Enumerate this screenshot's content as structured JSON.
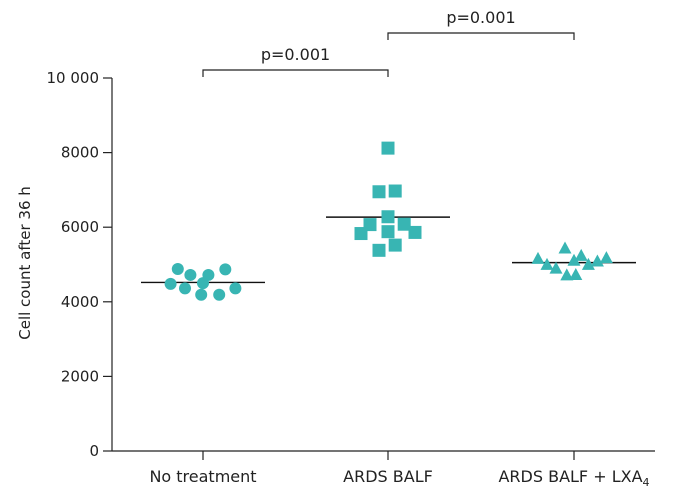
{
  "chart_data": {
    "type": "scatter",
    "ylabel": "Cell count after 36 h",
    "ylim": [
      0,
      10000
    ],
    "yticks": [
      0,
      2000,
      4000,
      6000,
      8000,
      10000
    ],
    "ytick_labels": [
      "0",
      "2000",
      "4000",
      "6000",
      "8000",
      "10 000"
    ],
    "categories": [
      "No treatment",
      "ARDS BALF",
      "ARDS BALF + LXA"
    ],
    "category_subscripts": [
      "",
      "",
      "4"
    ],
    "marker_color": "#38b5b3",
    "series": [
      {
        "marker": "circle",
        "mean": 4520,
        "points": [
          {
            "dx": -0.7,
            "y": 4880
          },
          {
            "dx": -0.35,
            "y": 4720
          },
          {
            "dx": 0.15,
            "y": 4720
          },
          {
            "dx": 0.62,
            "y": 4870
          },
          {
            "dx": -0.9,
            "y": 4480
          },
          {
            "dx": -0.5,
            "y": 4360
          },
          {
            "dx": 0.0,
            "y": 4500
          },
          {
            "dx": -0.05,
            "y": 4190
          },
          {
            "dx": 0.45,
            "y": 4190
          },
          {
            "dx": 0.9,
            "y": 4360
          }
        ]
      },
      {
        "marker": "square",
        "mean": 6270,
        "points": [
          {
            "dx": 0.0,
            "y": 8120
          },
          {
            "dx": -0.25,
            "y": 6950
          },
          {
            "dx": 0.2,
            "y": 6970
          },
          {
            "dx": 0.0,
            "y": 6280
          },
          {
            "dx": -0.5,
            "y": 6070
          },
          {
            "dx": 0.45,
            "y": 6080
          },
          {
            "dx": -0.75,
            "y": 5830
          },
          {
            "dx": 0.0,
            "y": 5880
          },
          {
            "dx": 0.75,
            "y": 5860
          },
          {
            "dx": -0.25,
            "y": 5380
          },
          {
            "dx": 0.2,
            "y": 5520
          }
        ]
      },
      {
        "marker": "triangle",
        "mean": 5050,
        "points": [
          {
            "dx": -1.0,
            "y": 5150
          },
          {
            "dx": -0.75,
            "y": 4990
          },
          {
            "dx": -0.5,
            "y": 4890
          },
          {
            "dx": -0.25,
            "y": 5430
          },
          {
            "dx": -0.2,
            "y": 4710
          },
          {
            "dx": 0.0,
            "y": 5100
          },
          {
            "dx": 0.05,
            "y": 4720
          },
          {
            "dx": 0.2,
            "y": 5230
          },
          {
            "dx": 0.4,
            "y": 4990
          },
          {
            "dx": 0.65,
            "y": 5080
          },
          {
            "dx": 0.9,
            "y": 5170
          }
        ]
      }
    ],
    "comparisons": [
      {
        "from": 0,
        "to": 1,
        "label": "p=0.001"
      },
      {
        "from": 1,
        "to": 2,
        "label": "p=0.001"
      }
    ]
  }
}
